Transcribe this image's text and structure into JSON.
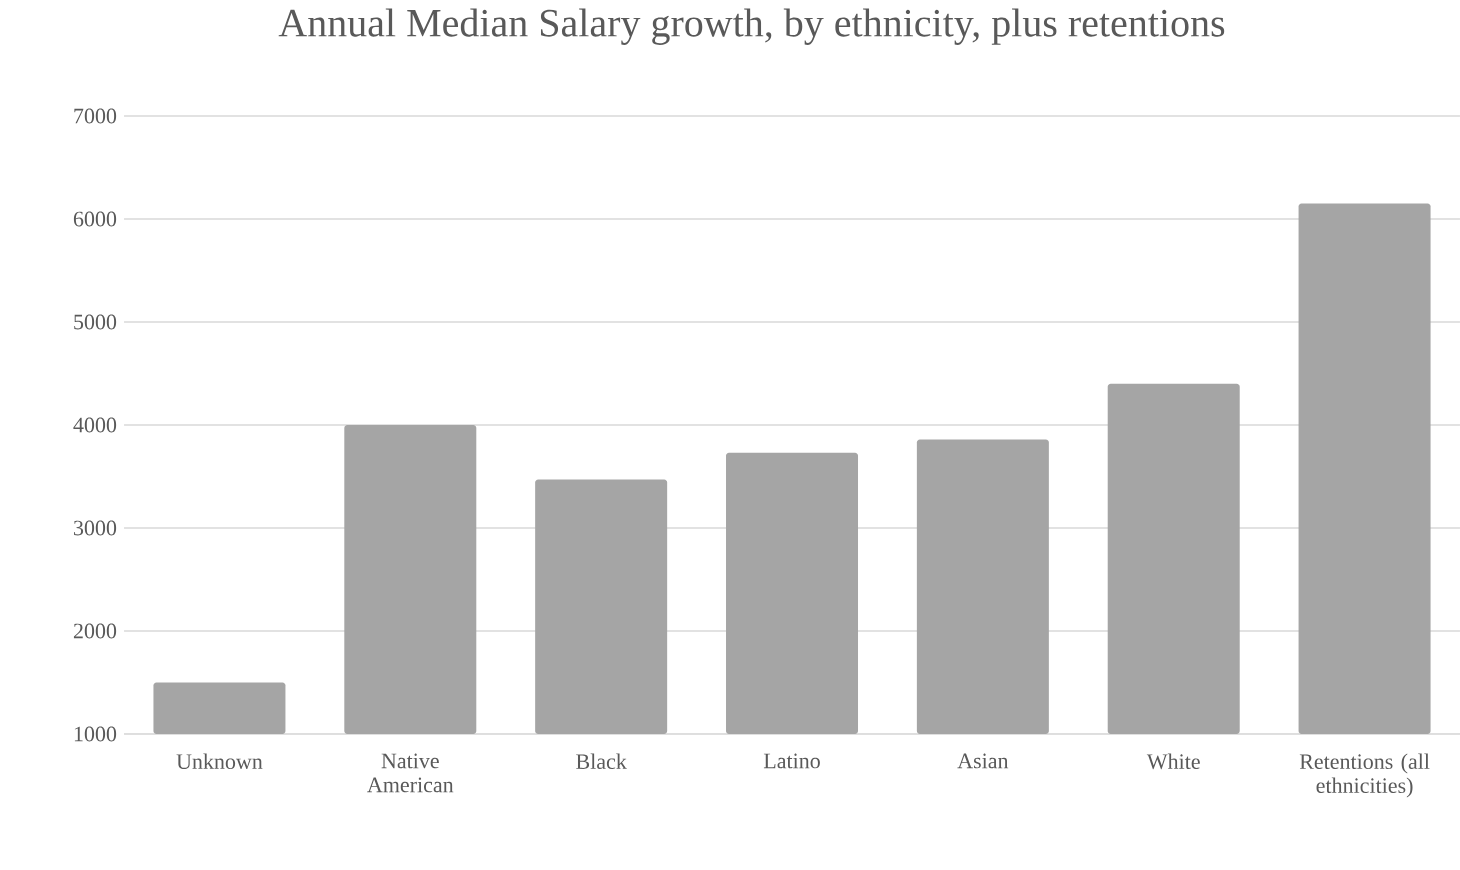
{
  "chart_data": {
    "type": "bar",
    "title": "Annual Median Salary growth, by ethnicity, plus retentions",
    "categories": [
      "Unknown",
      "Native American",
      "Black",
      "Latino",
      "Asian",
      "White",
      "Retentions (all ethnicities)"
    ],
    "values": [
      1500,
      4000,
      3470,
      3730,
      3860,
      4400,
      6150
    ],
    "color": "#a5a5a5",
    "ylim": [
      1000,
      7000
    ],
    "yticks": [
      1000,
      2000,
      3000,
      4000,
      5000,
      6000,
      7000
    ],
    "grid": "y"
  }
}
